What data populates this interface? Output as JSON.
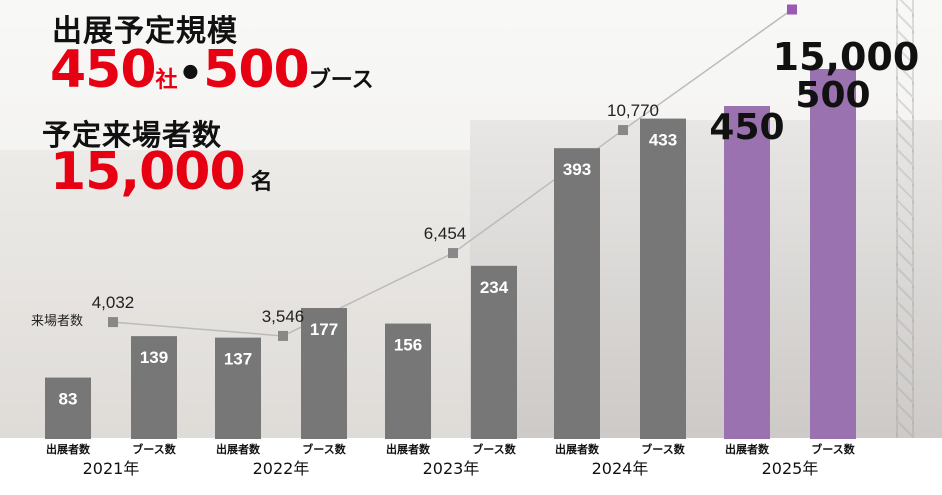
{
  "header": {
    "title1": "出展予定規模",
    "companies_value": "450",
    "companies_unit": "社",
    "separator": "•",
    "booths_value": "500",
    "booths_unit": "ブース",
    "title2": "予定来場者数",
    "visitors_value": "15,000",
    "visitors_unit": "名"
  },
  "chart_data": {
    "type": "bar",
    "categories": [
      "2021年",
      "2022年",
      "2023年",
      "2024年",
      "2025年"
    ],
    "series": [
      {
        "name": "出展者数",
        "values": [
          83,
          137,
          156,
          393,
          450
        ]
      },
      {
        "name": "ブース数",
        "values": [
          139,
          177,
          234,
          433,
          500
        ]
      },
      {
        "name": "来場者数",
        "type": "line",
        "values": [
          4032,
          3546,
          6454,
          10770,
          15000
        ]
      }
    ],
    "bar_labels": [
      "83",
      "139",
      "137",
      "177",
      "156",
      "234",
      "393",
      "433",
      "450",
      "500"
    ],
    "line_labels": [
      "4,032",
      "3,546",
      "6,454",
      "10,770",
      "15,000"
    ],
    "sub_labels": [
      "出展者数",
      "ブース数"
    ],
    "line_series_label": "来場者数",
    "colors": {
      "past_bar": "#777777",
      "plan_bar": "#9b72b0",
      "line": "#bbbbbb",
      "marker": "#888888",
      "plan_marker": "#9b59b6",
      "headline_red": "#e60012"
    }
  }
}
